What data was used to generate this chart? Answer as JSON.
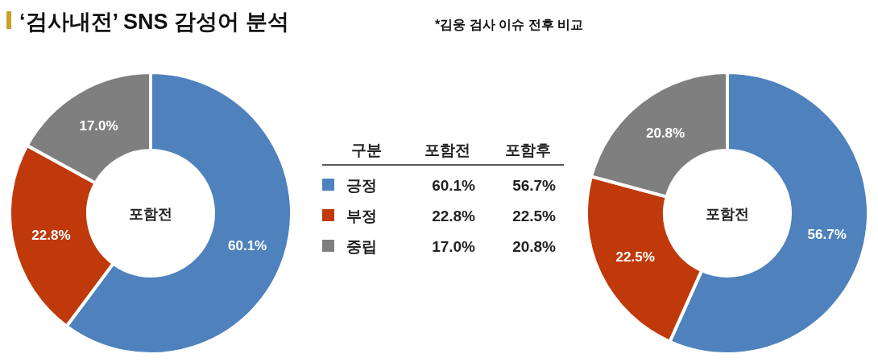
{
  "chart_data": [
    {
      "type": "donut",
      "title": "‘검사내전’ SNS 감성어 분석",
      "subtitle": "*김웅 검사 이슈 전후 비교",
      "categories": [
        "긍정",
        "부정",
        "중립"
      ],
      "values": [
        60.1,
        22.8,
        17.0
      ],
      "value_labels": [
        "60.1%",
        "22.8%",
        "17.0%"
      ],
      "colors": [
        "#4f81bd",
        "#c0390b",
        "#7f7f7f"
      ],
      "legend": "right",
      "legend_title": "구분",
      "annotations": [
        "포함전"
      ]
    },
    {
      "type": "donut",
      "categories": [
        null,
        null,
        null
      ],
      "values": [
        56.7,
        22.5,
        20.8
      ],
      "value_labels": [
        "56.7%",
        "22.5%",
        "20.8%"
      ],
      "colors": [
        "#4f81bd",
        "#c0390b",
        "#7f7f7f"
      ],
      "annotations": [
        "포함전"
      ]
    },
    {
      "type": "other",
      "annotations": [
        "포함전",
        "포함후",
        "60.1%",
        "56.7%",
        "22.8%",
        "22.5%",
        "17.0%",
        "20.8%"
      ]
    }
  ]
}
